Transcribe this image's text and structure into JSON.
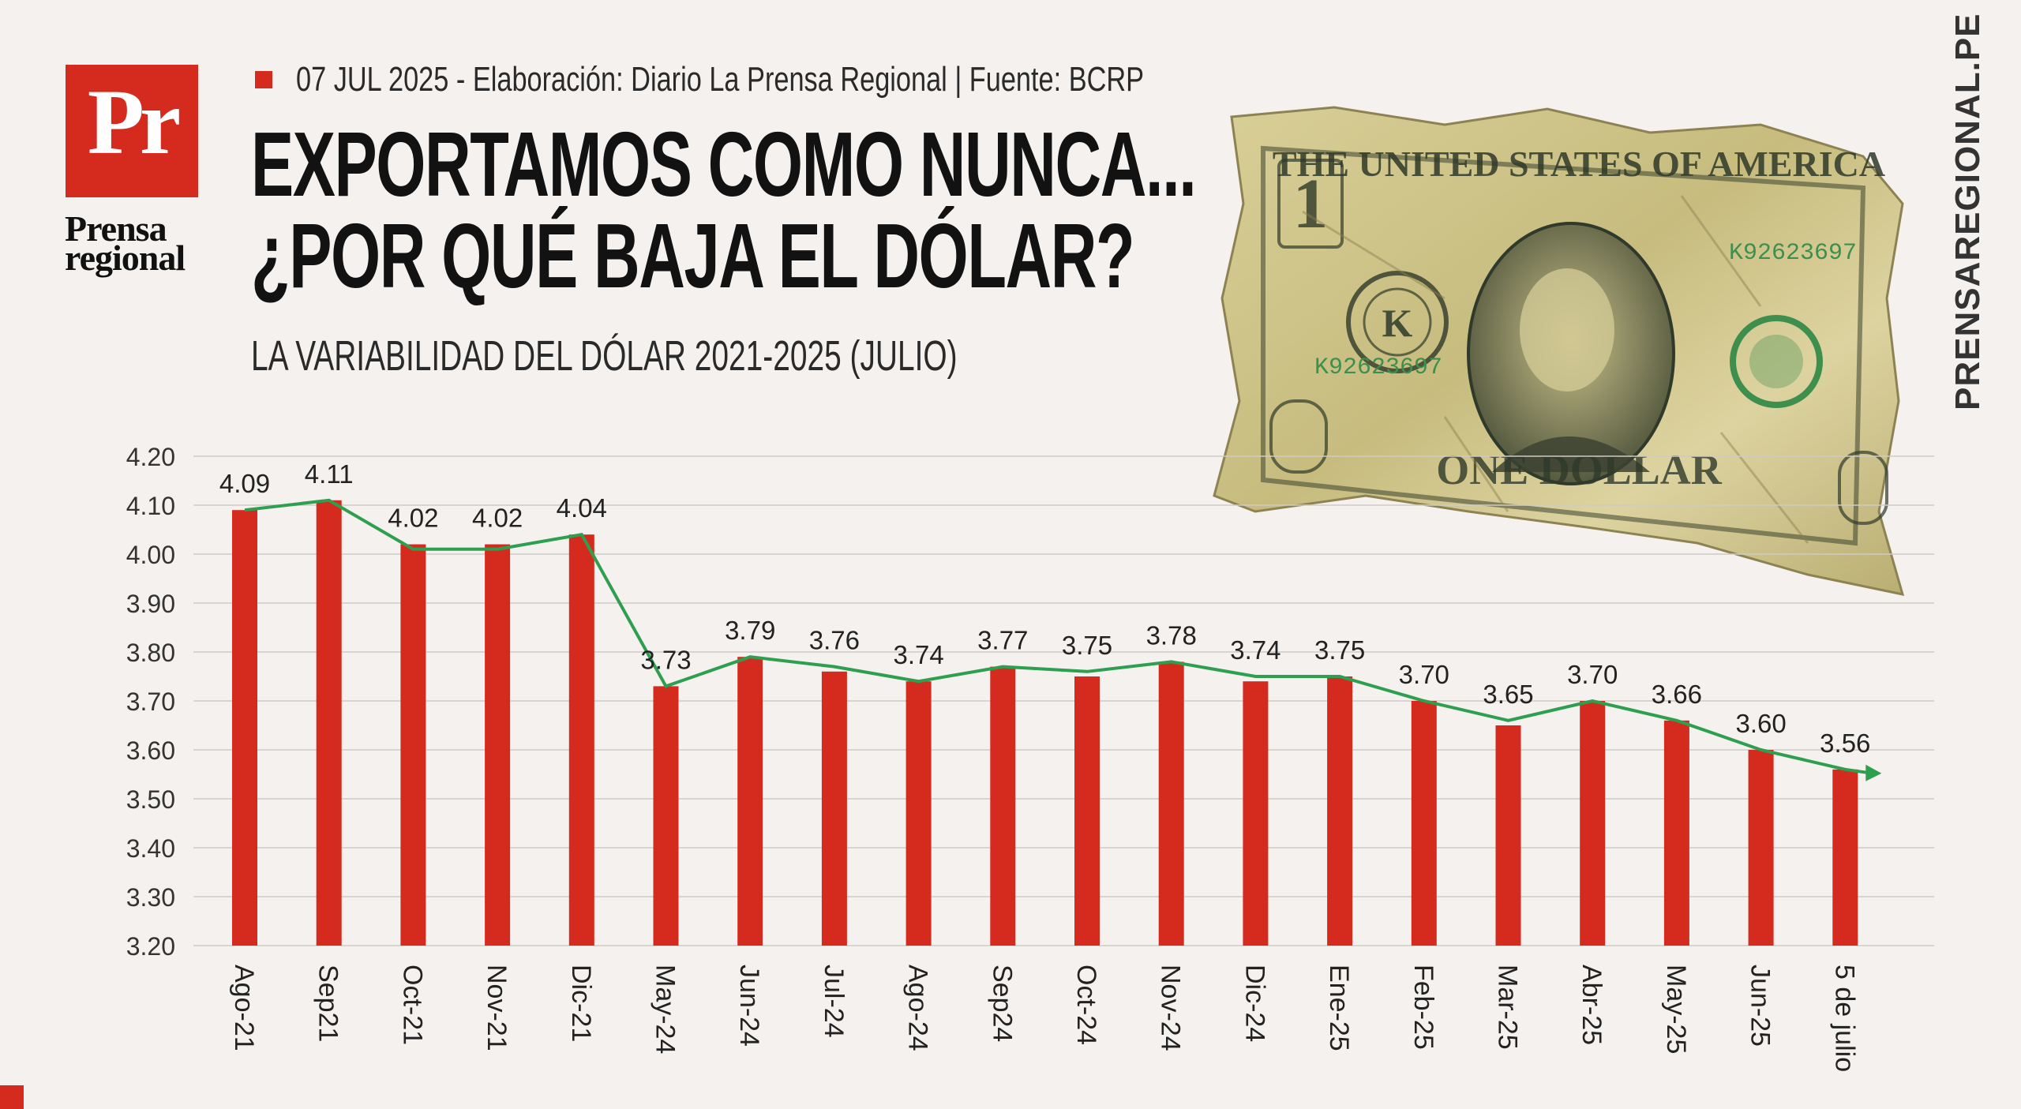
{
  "brand": {
    "logo_mark": "Pr",
    "logo_line1": "Prensa",
    "logo_line2": "regional",
    "side_url": "PRENSAREGIONAL.PE",
    "accent": "#d52b1e"
  },
  "header": {
    "source_line": "07 JUL 2025 -  Elaboración: Diario La Prensa Regional | Fuente: BCRP",
    "headline_1": "EXPORTAMOS COMO NUNCA...",
    "headline_2": "¿POR QUÉ BAJA EL DÓLAR?",
    "subtitle": "LA VARIABILIDAD DEL DÓLAR  2021-2025 (JULIO)"
  },
  "illustration": {
    "name": "crumpled-one-dollar-bill",
    "top_text": "THE UNITED STATES OF AMERICA",
    "bottom_text": "ONE DOLLAR",
    "serial": "K92623697",
    "denomination": "1",
    "colors": {
      "paper": "#cfc48a",
      "ink": "#2f3a2a",
      "seal": "#3e8f4e"
    }
  },
  "chart_data": {
    "type": "bar",
    "categories": [
      "Ago-21",
      "Sep21",
      "Oct-21",
      "Nov-21",
      "Dic-21",
      "May-24",
      "Jun-24",
      "Jul-24",
      "Ago-24",
      "Sep24",
      "Oct-24",
      "Nov-24",
      "Dic-24",
      "Ene-25",
      "Feb-25",
      "Mar-25",
      "Abr-25",
      "May-25",
      "Jun-25",
      "5 de julio"
    ],
    "values": [
      4.09,
      4.11,
      4.02,
      4.02,
      4.04,
      3.73,
      3.79,
      3.76,
      3.74,
      3.77,
      3.75,
      3.78,
      3.74,
      3.75,
      3.7,
      3.65,
      3.7,
      3.66,
      3.6,
      3.56
    ],
    "value_labels": [
      "4.09",
      "4.11",
      "4.02",
      "4.02",
      "4.04",
      "3.73",
      "3.79",
      "3.76",
      "3.74",
      "3.77",
      "3.75",
      "3.78",
      "3.74",
      "3.75",
      "3.70",
      "3.65",
      "3.70",
      "3.66",
      "3.60",
      "3.56"
    ],
    "trend_line": [
      4.09,
      4.11,
      4.01,
      4.01,
      4.04,
      3.73,
      3.79,
      3.77,
      3.74,
      3.77,
      3.76,
      3.78,
      3.75,
      3.75,
      3.7,
      3.66,
      3.7,
      3.66,
      3.6,
      3.56
    ],
    "yticks": [
      "4.20",
      "4.10",
      "4.00",
      "3.90",
      "3.80",
      "3.70",
      "3.60",
      "3.50",
      "3.40",
      "3.30",
      "3.20"
    ],
    "ylim": [
      3.2,
      4.2
    ],
    "grid": true,
    "bar_color": "#d52b1e",
    "line_color": "#2e9e4f",
    "title": "",
    "xlabel": "",
    "ylabel": ""
  }
}
